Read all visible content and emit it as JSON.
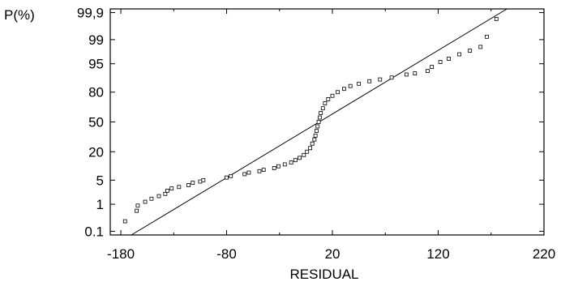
{
  "chart_data": {
    "type": "scatter",
    "title": "",
    "xlabel": "RESIDUAL",
    "ylabel": "P(%)",
    "xlim": [
      -190,
      220
    ],
    "x_ticks": [
      -180,
      -80,
      20,
      120,
      220
    ],
    "y_ticks": [
      {
        "label": "0.1",
        "p": 0.1
      },
      {
        "label": "1",
        "p": 1
      },
      {
        "label": "5",
        "p": 5
      },
      {
        "label": "20",
        "p": 20
      },
      {
        "label": "50",
        "p": 50
      },
      {
        "label": "80",
        "p": 80
      },
      {
        "label": "95",
        "p": 95
      },
      {
        "label": "99",
        "p": 99
      },
      {
        "label": "99,9",
        "p": 99.9
      }
    ],
    "grid": false,
    "reference_line": {
      "x": [
        -170,
        185
      ],
      "p": [
        0.07,
        99.93
      ]
    },
    "series": [
      {
        "points": [
          {
            "x": -176,
            "p": 0.25
          },
          {
            "x": -165,
            "p": 0.6
          },
          {
            "x": -164,
            "p": 0.9
          },
          {
            "x": -157,
            "p": 1.2
          },
          {
            "x": -151,
            "p": 1.5
          },
          {
            "x": -144,
            "p": 1.8
          },
          {
            "x": -138,
            "p": 2.1
          },
          {
            "x": -136,
            "p": 2.6
          },
          {
            "x": -132,
            "p": 3
          },
          {
            "x": -125,
            "p": 3.3
          },
          {
            "x": -116,
            "p": 3.7
          },
          {
            "x": -112,
            "p": 4.3
          },
          {
            "x": -105,
            "p": 4.6
          },
          {
            "x": -102,
            "p": 5
          },
          {
            "x": -80,
            "p": 5.8
          },
          {
            "x": -76,
            "p": 6.3
          },
          {
            "x": -63,
            "p": 7
          },
          {
            "x": -59,
            "p": 7.6
          },
          {
            "x": -49,
            "p": 8.2
          },
          {
            "x": -45,
            "p": 8.8
          },
          {
            "x": -35,
            "p": 9.6
          },
          {
            "x": -31,
            "p": 10.5
          },
          {
            "x": -25,
            "p": 11.5
          },
          {
            "x": -19,
            "p": 12.6
          },
          {
            "x": -15,
            "p": 14
          },
          {
            "x": -11,
            "p": 15.5
          },
          {
            "x": -7,
            "p": 17.5
          },
          {
            "x": -4,
            "p": 20
          },
          {
            "x": -1,
            "p": 23
          },
          {
            "x": 1,
            "p": 27
          },
          {
            "x": 3,
            "p": 31
          },
          {
            "x": 4,
            "p": 35
          },
          {
            "x": 5,
            "p": 40
          },
          {
            "x": 6,
            "p": 45
          },
          {
            "x": 7,
            "p": 50
          },
          {
            "x": 8,
            "p": 55
          },
          {
            "x": 9,
            "p": 60
          },
          {
            "x": 11,
            "p": 65
          },
          {
            "x": 13,
            "p": 70
          },
          {
            "x": 16,
            "p": 74
          },
          {
            "x": 20,
            "p": 77
          },
          {
            "x": 25,
            "p": 80
          },
          {
            "x": 31,
            "p": 82.5
          },
          {
            "x": 37,
            "p": 84.5
          },
          {
            "x": 45,
            "p": 86
          },
          {
            "x": 55,
            "p": 87.5
          },
          {
            "x": 65,
            "p": 88.5
          },
          {
            "x": 76,
            "p": 89.5
          },
          {
            "x": 90,
            "p": 91
          },
          {
            "x": 98,
            "p": 91.5
          },
          {
            "x": 110,
            "p": 92.5
          },
          {
            "x": 114,
            "p": 94
          },
          {
            "x": 122,
            "p": 95.5
          },
          {
            "x": 130,
            "p": 96.3
          },
          {
            "x": 140,
            "p": 97.2
          },
          {
            "x": 150,
            "p": 97.8
          },
          {
            "x": 160,
            "p": 98.3
          },
          {
            "x": 166,
            "p": 99.2
          },
          {
            "x": 175,
            "p": 99.82
          }
        ]
      }
    ]
  }
}
